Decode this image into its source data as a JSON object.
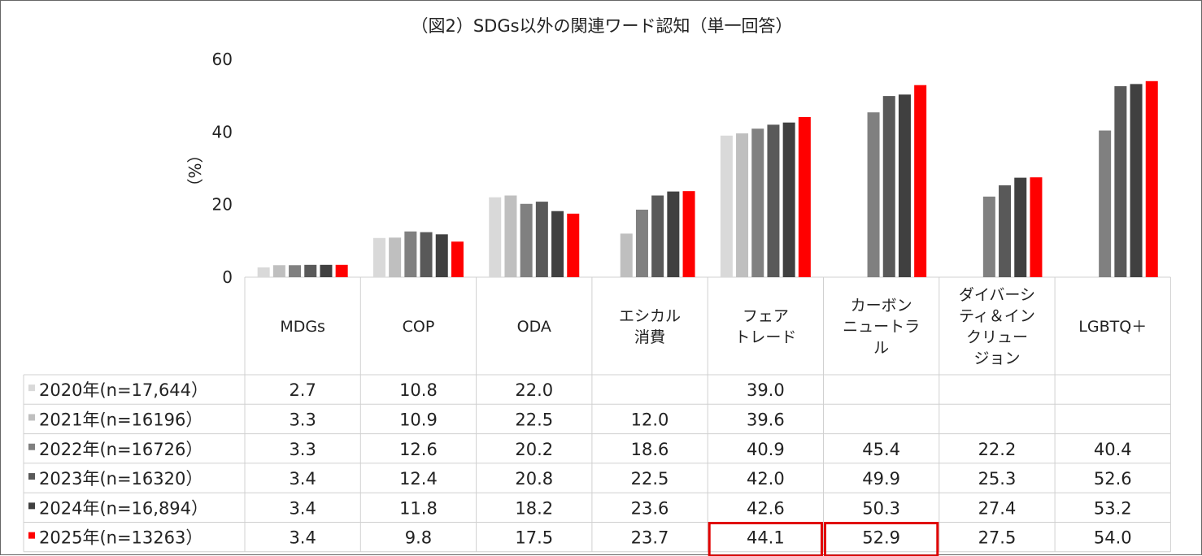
{
  "chart_data": {
    "type": "bar",
    "title": "（図2）SDGs以外の関連ワード認知（単一回答）",
    "ylabel": "（%）",
    "ylim": [
      0,
      60
    ],
    "yticks": [
      0,
      20,
      40,
      60
    ],
    "categories": [
      [
        "MDGs"
      ],
      [
        "COP"
      ],
      [
        "ODA"
      ],
      [
        "エシカル",
        "消費"
      ],
      [
        "フェア",
        "トレード"
      ],
      [
        "カーボン",
        "ニュートラ",
        "ル"
      ],
      [
        "ダイバーシ",
        "ティ＆イン",
        "クリュー",
        "ジョン"
      ],
      [
        "LGBTQ＋"
      ]
    ],
    "series": [
      {
        "name": "2020年(n=17,644）",
        "color": "#d9d9d9",
        "values": [
          2.7,
          10.8,
          22.0,
          null,
          39.0,
          null,
          null,
          null
        ]
      },
      {
        "name": "2021年(n=16196）",
        "color": "#bfbfbf",
        "values": [
          3.3,
          10.9,
          22.5,
          12.0,
          39.6,
          null,
          null,
          null
        ]
      },
      {
        "name": "2022年(n=16726）",
        "color": "#808080",
        "values": [
          3.3,
          12.6,
          20.2,
          18.6,
          40.9,
          45.4,
          22.2,
          40.4
        ]
      },
      {
        "name": "2023年(n=16320）",
        "color": "#595959",
        "values": [
          3.4,
          12.4,
          20.8,
          22.5,
          42.0,
          49.9,
          25.3,
          52.6
        ]
      },
      {
        "name": "2024年(n=16,894）",
        "color": "#404040",
        "values": [
          3.4,
          11.8,
          18.2,
          23.6,
          42.6,
          50.3,
          27.4,
          53.2
        ]
      },
      {
        "name": "2025年(n=13263）",
        "color": "#ff0000",
        "values": [
          3.4,
          9.8,
          17.5,
          23.7,
          44.1,
          52.9,
          27.5,
          54.0
        ]
      }
    ],
    "table_display": [
      [
        "2.7",
        "10.8",
        "22.0",
        "",
        "39.0",
        "",
        "",
        ""
      ],
      [
        "3.3",
        "10.9",
        "22.5",
        "12.0",
        "39.6",
        "",
        "",
        ""
      ],
      [
        "3.3",
        "12.6",
        "20.2",
        "18.6",
        "40.9",
        "45.4",
        "22.2",
        "40.4"
      ],
      [
        "3.4",
        "12.4",
        "20.8",
        "22.5",
        "42.0",
        "49.9",
        "25.3",
        "52.6"
      ],
      [
        "3.4",
        "11.8",
        "18.2",
        "23.6",
        "42.6",
        "50.3",
        "27.4",
        "53.2"
      ],
      [
        "3.4",
        "9.8",
        "17.5",
        "23.7",
        "44.1",
        "52.9",
        "27.5",
        "54.0"
      ]
    ],
    "highlighted_cells": [
      {
        "series": 5,
        "category": 4
      },
      {
        "series": 5,
        "category": 5
      }
    ],
    "highlight_color": "#e00000"
  }
}
